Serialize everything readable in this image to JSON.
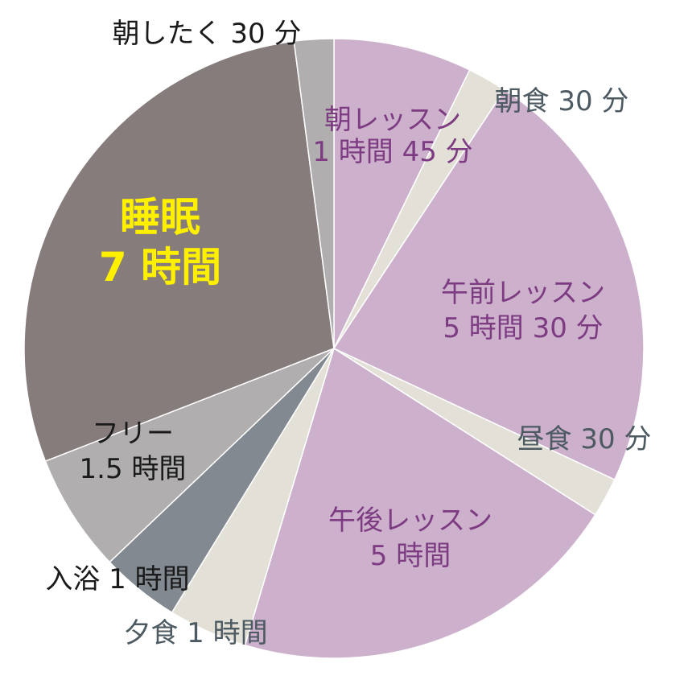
{
  "chart_data": {
    "type": "pie",
    "start_angle": "12 o'clock",
    "direction": "clockwise",
    "slices": [
      {
        "label": "朝レッスン",
        "sublabel": "1 時間 45 分",
        "hours": 1.75,
        "color": "#ccb0cc",
        "text_color": "#7d3c82"
      },
      {
        "label": "朝食 30 分",
        "sublabel": "",
        "hours": 0.5,
        "color": "#e3e1d7",
        "text_color": "#4d5a62"
      },
      {
        "label": "午前レッスン",
        "sublabel": "5 時間 30 分",
        "hours": 5.5,
        "color": "#ccb0cc",
        "text_color": "#7d3c82"
      },
      {
        "label": "昼食 30 分",
        "sublabel": "",
        "hours": 0.5,
        "color": "#e3e1d7",
        "text_color": "#4d5a62"
      },
      {
        "label": "午後レッスン",
        "sublabel": "5 時間",
        "hours": 5,
        "color": "#ccb0cc",
        "text_color": "#7d3c82"
      },
      {
        "label": "夕食 1 時間",
        "sublabel": "",
        "hours": 1,
        "color": "#e3e1d7",
        "text_color": "#4d5a62"
      },
      {
        "label": "入浴 1 時間",
        "sublabel": "",
        "hours": 1,
        "color": "#838990",
        "text_color": "#1a1a1a"
      },
      {
        "label": "フリー",
        "sublabel": "1.5 時間",
        "hours": 1.5,
        "color": "#b1aeaf",
        "text_color": "#1a1a1a"
      },
      {
        "label": "睡眠",
        "sublabel": "7 時間",
        "hours": 7,
        "color": "#857c7b",
        "text_color": "#fff000"
      },
      {
        "label": "朝したく 30 分",
        "sublabel": "",
        "hours": 0.5,
        "color": "#b1aeaf",
        "text_color": "#1a1a1a"
      }
    ]
  }
}
